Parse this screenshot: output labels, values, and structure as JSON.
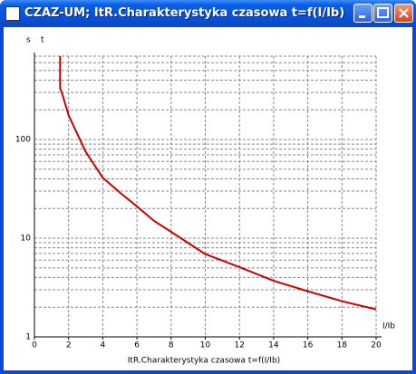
{
  "window": {
    "title": "CZAZ-UM; ItR.Charakterystyka czasowa t=f(I/Ib)"
  },
  "chart_data": {
    "type": "line",
    "x_title": "ItR.Charakterystyka czasowa t=f(I/Ib)",
    "x_unit": "I/Ib",
    "y_unit": "s",
    "y_title": "t",
    "x": [
      1.5,
      1.5,
      1.6,
      2,
      3,
      4,
      5,
      6,
      7,
      8,
      10,
      12,
      14,
      16,
      18,
      20
    ],
    "values": [
      700,
      330,
      300,
      176,
      75,
      41,
      29,
      21,
      15,
      11.6,
      6.9,
      5.1,
      3.7,
      2.9,
      2.3,
      1.9
    ],
    "color": "#cc0000",
    "xlim": [
      0,
      20
    ],
    "xticks": [
      0,
      2,
      4,
      6,
      8,
      10,
      12,
      14,
      16,
      18,
      20
    ],
    "ylim": [
      1,
      700
    ],
    "yticks": [
      1,
      10,
      100
    ],
    "y_minor_grid": [
      2,
      3,
      4,
      5,
      6,
      7,
      8,
      9,
      20,
      30,
      40,
      50,
      60,
      70,
      80,
      90,
      200,
      300,
      400,
      500,
      600,
      700
    ],
    "ylog": true,
    "grid": true
  }
}
